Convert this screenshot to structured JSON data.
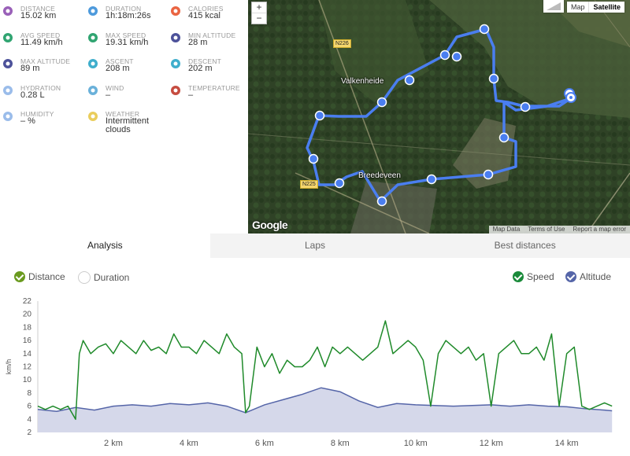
{
  "stats": [
    {
      "label": "DISTANCE",
      "value": "15.02 km",
      "icon": "distance-icon",
      "color": "#8e4fb0"
    },
    {
      "label": "DURATION",
      "value": "1h:18m:26s",
      "icon": "stopwatch-icon",
      "color": "#3a8fd8"
    },
    {
      "label": "CALORIES",
      "value": "415 kcal",
      "icon": "flame-icon",
      "color": "#e8542e"
    },
    {
      "label": "AVG SPEED",
      "value": "11.49 km/h",
      "icon": "speedometer-icon",
      "color": "#1a9a62"
    },
    {
      "label": "MAX SPEED",
      "value": "19.31 km/h",
      "icon": "speedometer-max-icon",
      "color": "#1a9a62"
    },
    {
      "label": "MIN ALTITUDE",
      "value": "28 m",
      "icon": "mountain-min-icon",
      "color": "#3a3f8f"
    },
    {
      "label": "MAX ALTITUDE",
      "value": "89 m",
      "icon": "mountain-max-icon",
      "color": "#3a3f8f"
    },
    {
      "label": "ASCENT",
      "value": "208 m",
      "icon": "ascent-icon",
      "color": "#2aa5c7"
    },
    {
      "label": "DESCENT",
      "value": "202 m",
      "icon": "descent-icon",
      "color": "#2aa5c7"
    },
    {
      "label": "HYDRATION",
      "value": "0.28 L",
      "icon": "water-drops-icon",
      "color": "#8fb5e8"
    },
    {
      "label": "WIND",
      "value": "–",
      "icon": "wind-icon",
      "color": "#5aa9d6"
    },
    {
      "label": "TEMPERATURE",
      "value": "–",
      "icon": "thermometer-icon",
      "color": "#c0392b"
    },
    {
      "label": "HUMIDITY",
      "value": "– %",
      "icon": "humidity-icon",
      "color": "#8fb5e8"
    },
    {
      "label": "WEATHER",
      "value": "Intermittent clouds",
      "icon": "partly-cloudy-icon",
      "color": "#e8c84a"
    }
  ],
  "map": {
    "zoom_in": "+",
    "zoom_out": "−",
    "type_map": "Map",
    "type_satellite": "Satellite",
    "places": [
      "Valkenheide",
      "Breedeveen"
    ],
    "roads": [
      "N226",
      "N225"
    ],
    "attribution": [
      "Map Data",
      "Terms of Use",
      "Report a map error"
    ],
    "logo": "Google",
    "route_color": "#4a7ef0"
  },
  "tabs": [
    "Analysis",
    "Laps",
    "Best distances"
  ],
  "toggles": {
    "distance": "Distance",
    "duration": "Duration",
    "speed": "Speed",
    "altitude": "Altitude"
  },
  "colors": {
    "speed": "#1f8a2a",
    "altitude": "#5565a8",
    "altitude_fill": "#d5d8ea",
    "checkbox_distance": "#6a9a1f",
    "checkbox_speed": "#1a8a3a",
    "checkbox_altitude": "#5565a8"
  },
  "chart_data": {
    "type": "line",
    "ylabel": "km/h",
    "ylim": [
      2,
      22
    ],
    "yticks": [
      2,
      4,
      6,
      8,
      10,
      12,
      14,
      16,
      18,
      20,
      22
    ],
    "xlim": [
      0,
      15.3
    ],
    "xticks": [
      "2 km",
      "4 km",
      "6 km",
      "8 km",
      "10 km",
      "12 km",
      "14 km"
    ],
    "xtick_values": [
      2,
      4,
      6,
      8,
      10,
      12,
      14
    ],
    "series": [
      {
        "name": "Speed",
        "x": [
          0,
          0.2,
          0.4,
          0.6,
          0.8,
          1.0,
          1.1,
          1.2,
          1.4,
          1.6,
          1.8,
          2.0,
          2.2,
          2.4,
          2.6,
          2.8,
          3.0,
          3.2,
          3.4,
          3.6,
          3.8,
          4.0,
          4.2,
          4.4,
          4.6,
          4.8,
          5.0,
          5.2,
          5.4,
          5.5,
          5.6,
          5.8,
          6.0,
          6.2,
          6.4,
          6.6,
          6.8,
          7.0,
          7.2,
          7.4,
          7.6,
          7.8,
          8.0,
          8.2,
          8.4,
          8.6,
          8.8,
          9.0,
          9.2,
          9.4,
          9.6,
          9.8,
          10.0,
          10.2,
          10.4,
          10.6,
          10.8,
          11.0,
          11.2,
          11.4,
          11.6,
          11.8,
          12.0,
          12.2,
          12.4,
          12.6,
          12.8,
          13.0,
          13.2,
          13.4,
          13.6,
          13.8,
          14.0,
          14.2,
          14.4,
          14.6,
          14.8,
          15.0,
          15.2
        ],
        "values": [
          6,
          5.5,
          6,
          5.5,
          6,
          4,
          14,
          16,
          14,
          15,
          15.5,
          14,
          16,
          15,
          14,
          16,
          14.5,
          15,
          14,
          17,
          15,
          15,
          14,
          16,
          15,
          14,
          17,
          15,
          14,
          5,
          6,
          15,
          12,
          14,
          11,
          13,
          12,
          12,
          13,
          15,
          12,
          15,
          14,
          15,
          14,
          13,
          14,
          15,
          19,
          14,
          15,
          16,
          15,
          13,
          6,
          14,
          16,
          15,
          14,
          15,
          13,
          14,
          6,
          14,
          15,
          16,
          14,
          14,
          15,
          13,
          17,
          6,
          14,
          15,
          6,
          5.5,
          6,
          6.5,
          6
        ]
      },
      {
        "name": "Altitude",
        "x": [
          0,
          0.5,
          1.0,
          1.5,
          2.0,
          2.5,
          3.0,
          3.5,
          4.0,
          4.5,
          5.0,
          5.5,
          6.0,
          6.5,
          7.0,
          7.5,
          8.0,
          8.5,
          9.0,
          9.5,
          10.0,
          10.5,
          11.0,
          11.5,
          12.0,
          12.5,
          13.0,
          13.5,
          14.0,
          14.5,
          15.0,
          15.2
        ],
        "values": [
          5.5,
          5.2,
          5.8,
          5.4,
          6.0,
          6.2,
          6.0,
          6.4,
          6.2,
          6.5,
          6.0,
          5.0,
          6.2,
          7.0,
          7.8,
          8.8,
          8.2,
          6.8,
          5.8,
          6.4,
          6.2,
          6.1,
          6.0,
          6.1,
          6.2,
          6.0,
          6.2,
          6.0,
          5.9,
          5.6,
          5.4,
          5.3
        ]
      }
    ]
  }
}
